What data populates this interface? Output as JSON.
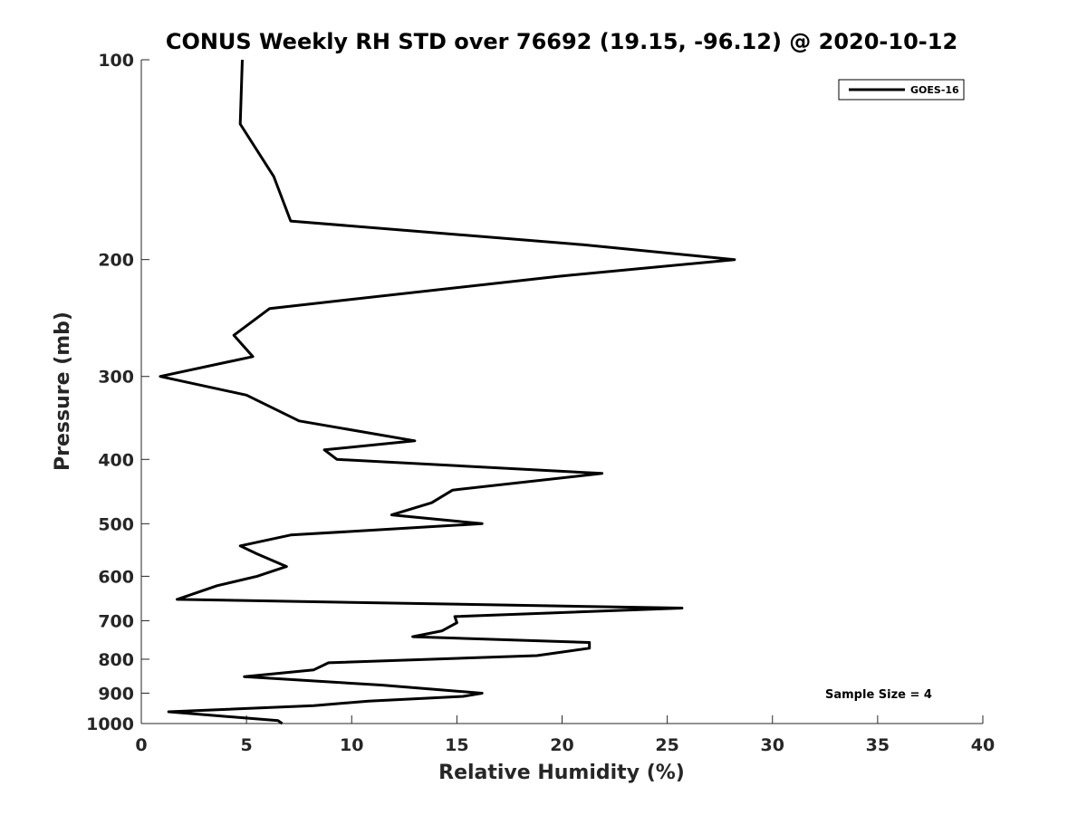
{
  "chart_data": {
    "type": "line",
    "title": "CONUS Weekly RH STD over 76692 (19.15, -96.12) @ 2020-10-12",
    "xlabel": "Relative Humidity (%)",
    "ylabel": "Pressure (mb)",
    "xlim": [
      0,
      40
    ],
    "ylim": [
      100,
      1000
    ],
    "yscale": "log",
    "y_reversed": true,
    "x_ticks": [
      0,
      5,
      10,
      15,
      20,
      25,
      30,
      35,
      40
    ],
    "y_ticks": [
      100,
      200,
      300,
      400,
      500,
      600,
      700,
      800,
      900,
      1000
    ],
    "grid": false,
    "legend_position": "top-right",
    "annotation": "Sample Size = 4",
    "series": [
      {
        "name": "GOES-16",
        "color": "#000000",
        "x": [
          4.8,
          4.7,
          6.3,
          7.1,
          21.0,
          28.2,
          19.8,
          6.1,
          4.4,
          5.3,
          0.9,
          5.0,
          7.5,
          13.0,
          8.7,
          9.3,
          21.9,
          14.8,
          13.8,
          11.9,
          16.2,
          7.1,
          4.7,
          5.5,
          6.9,
          5.5,
          3.6,
          1.7,
          25.7,
          14.9,
          15.0,
          14.3,
          12.9,
          21.3,
          21.3,
          18.8,
          8.9,
          8.2,
          4.9,
          11.4,
          16.2,
          15.3,
          10.8,
          8.2,
          1.3,
          6.5,
          6.7
        ],
        "y": [
          100,
          125,
          150,
          175,
          190,
          200,
          212,
          237,
          260,
          280,
          300,
          320,
          350,
          375,
          387,
          400,
          420,
          445,
          465,
          485,
          500,
          520,
          540,
          555,
          580,
          600,
          620,
          650,
          670,
          690,
          705,
          725,
          740,
          755,
          770,
          790,
          810,
          830,
          850,
          875,
          900,
          910,
          925,
          940,
          960,
          990,
          1000
        ]
      }
    ]
  }
}
